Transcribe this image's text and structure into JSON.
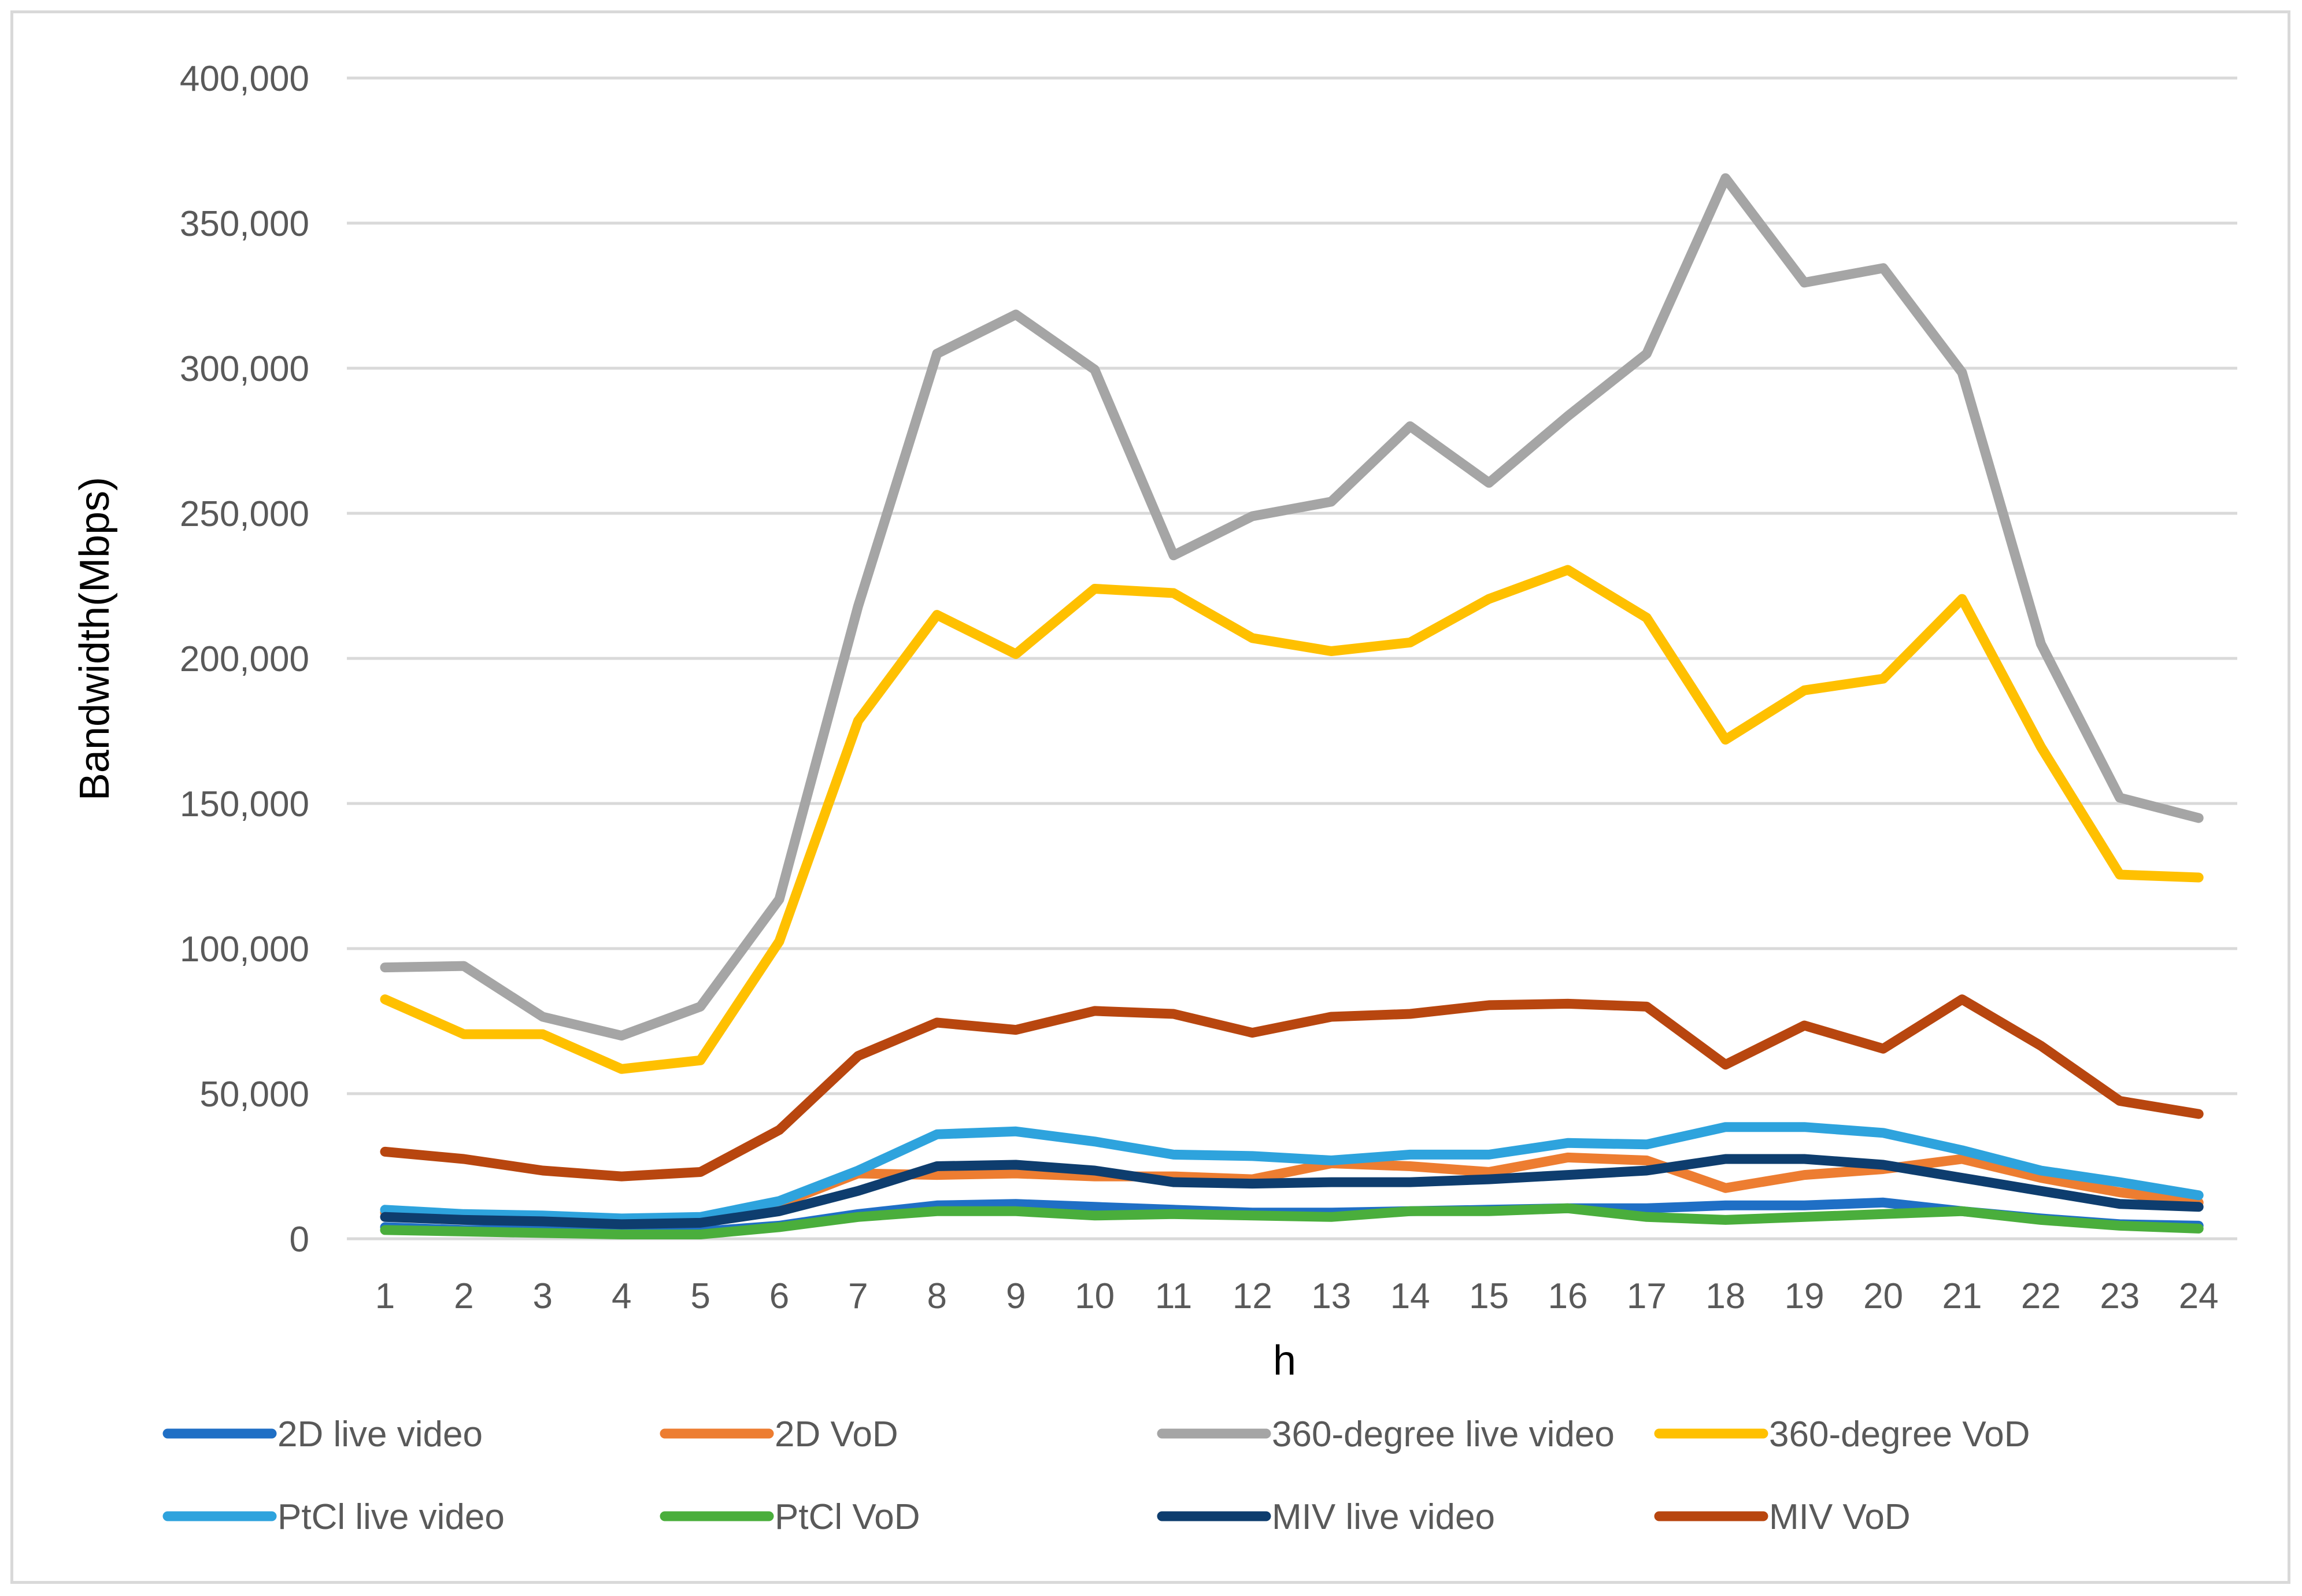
{
  "chart_data": {
    "type": "line",
    "title": "",
    "xlabel": "h",
    "ylabel": "Bandwidth(Mbps)",
    "ylim": [
      0,
      400000
    ],
    "yticks": [
      0,
      50000,
      100000,
      150000,
      200000,
      250000,
      300000,
      350000,
      400000
    ],
    "ytick_labels": [
      "0",
      "50,000",
      "100,000",
      "150,000",
      "200,000",
      "250,000",
      "300,000",
      "350,000",
      "400,000"
    ],
    "categories": [
      "1",
      "2",
      "3",
      "4",
      "5",
      "6",
      "7",
      "8",
      "9",
      "10",
      "11",
      "12",
      "13",
      "14",
      "15",
      "16",
      "17",
      "18",
      "19",
      "20",
      "21",
      "22",
      "23",
      "24"
    ],
    "grid": true,
    "legend_position": "bottom",
    "series": [
      {
        "name": "2D live video",
        "color": "#1f6fc5",
        "values": [
          4000,
          3000,
          3000,
          2500,
          2500,
          4500,
          8500,
          11500,
          12000,
          11000,
          10000,
          9000,
          9000,
          9500,
          10000,
          10500,
          10500,
          11500,
          11500,
          12500,
          9500,
          7000,
          5000,
          4500
        ]
      },
      {
        "name": "2D VoD",
        "color": "#ed7d31",
        "values": [
          9000,
          7500,
          7000,
          6000,
          6500,
          12000,
          22500,
          22000,
          22500,
          21500,
          21500,
          20500,
          26000,
          25000,
          23000,
          28000,
          27000,
          17500,
          22000,
          24000,
          27500,
          21000,
          16000,
          12500
        ]
      },
      {
        "name": "360-degree live video",
        "color": "#a5a5a5",
        "values": [
          93500,
          94000,
          76500,
          70000,
          80000,
          117000,
          218000,
          305000,
          318500,
          299500,
          235500,
          249000,
          254000,
          280000,
          260500,
          283500,
          305000,
          365500,
          329500,
          334500,
          298500,
          205000,
          152000,
          145000
        ]
      },
      {
        "name": "360-degree VoD",
        "color": "#ffc000",
        "values": [
          82500,
          70500,
          70500,
          58500,
          61500,
          102500,
          178500,
          215000,
          201500,
          224000,
          222500,
          207000,
          202500,
          205500,
          220500,
          230500,
          214000,
          172000,
          189000,
          193000,
          220500,
          169500,
          125500,
          124500
        ]
      },
      {
        "name": "PtCl live video",
        "color": "#2ea3dd",
        "values": [
          10000,
          8500,
          8000,
          7000,
          7500,
          13000,
          23500,
          36000,
          37000,
          33500,
          29000,
          28500,
          27000,
          29000,
          29000,
          33000,
          32500,
          38500,
          38500,
          36500,
          30500,
          23500,
          19500,
          15000
        ]
      },
      {
        "name": "PtCl VoD",
        "color": "#4aae3c",
        "values": [
          3000,
          2500,
          2000,
          1500,
          1500,
          4000,
          7500,
          9500,
          9500,
          8000,
          8500,
          8000,
          7500,
          9500,
          9500,
          10500,
          7500,
          6500,
          7500,
          8500,
          9500,
          6500,
          4500,
          3500
        ]
      },
      {
        "name": "MIV live video",
        "color": "#0e3d6e",
        "values": [
          7500,
          6500,
          6000,
          5000,
          5500,
          9500,
          16500,
          25000,
          25500,
          23500,
          19500,
          19000,
          19500,
          19500,
          20500,
          22000,
          23500,
          27500,
          27500,
          25500,
          21000,
          16500,
          12000,
          11000
        ]
      },
      {
        "name": "MIV VoD",
        "color": "#b8460f",
        "values": [
          30000,
          27500,
          23500,
          21500,
          23000,
          37500,
          63000,
          74500,
          72000,
          78500,
          77500,
          71000,
          76500,
          77500,
          80500,
          81000,
          80000,
          60000,
          73500,
          65500,
          82500,
          66500,
          47500,
          43000
        ]
      }
    ]
  }
}
